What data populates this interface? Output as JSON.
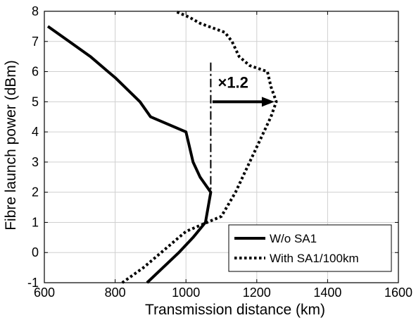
{
  "chart_data": {
    "type": "line",
    "title": "",
    "xlabel": "Transmission distance (km)",
    "ylabel": "Fibre launch power (dBm)",
    "xlim": [
      600,
      1600
    ],
    "ylim": [
      -1,
      8
    ],
    "xticks": [
      600,
      800,
      1000,
      1200,
      1400,
      1600
    ],
    "yticks": [
      -1,
      0,
      1,
      2,
      3,
      4,
      5,
      6,
      7,
      8
    ],
    "grid": true,
    "legend_position": "bottom-right",
    "series": [
      {
        "name": "W/o SA1",
        "style": "solid",
        "color": "#000000",
        "points": [
          [
            890,
            -1
          ],
          [
            980,
            0
          ],
          [
            1020,
            0.5
          ],
          [
            1055,
            1
          ],
          [
            1070,
            2
          ],
          [
            1040,
            2.5
          ],
          [
            1020,
            3
          ],
          [
            1000,
            4
          ],
          [
            900,
            4.5
          ],
          [
            870,
            5
          ],
          [
            800,
            5.8
          ],
          [
            780,
            6
          ],
          [
            730,
            6.5
          ],
          [
            670,
            7
          ],
          [
            610,
            7.5
          ]
        ]
      },
      {
        "name": "With SA1/100km",
        "style": "dotted",
        "color": "#000000",
        "points": [
          [
            820,
            -1
          ],
          [
            880,
            -0.5
          ],
          [
            930,
            0
          ],
          [
            980,
            0.5
          ],
          [
            1000,
            0.7
          ],
          [
            1060,
            1
          ],
          [
            1100,
            1.2
          ],
          [
            1140,
            2
          ],
          [
            1180,
            3
          ],
          [
            1200,
            3.5
          ],
          [
            1220,
            4
          ],
          [
            1240,
            4.5
          ],
          [
            1255,
            5
          ],
          [
            1240,
            5.5
          ],
          [
            1230,
            6
          ],
          [
            1180,
            6.2
          ],
          [
            1150,
            6.5
          ],
          [
            1130,
            7
          ],
          [
            1110,
            7.3
          ],
          [
            1040,
            7.6
          ],
          [
            1010,
            7.8
          ],
          [
            970,
            8
          ]
        ]
      }
    ],
    "annotations": {
      "label": "×1.2",
      "vline_x": 1070,
      "vline_y_range": [
        2,
        6.3
      ],
      "arrow_from": [
        1075,
        5
      ],
      "arrow_to": [
        1250,
        5
      ],
      "label_at": [
        1090,
        5.65
      ]
    }
  }
}
